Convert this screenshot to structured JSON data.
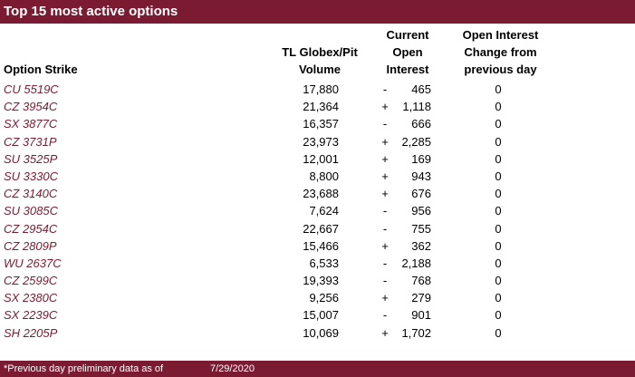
{
  "title": "Top 15 most active options",
  "headers": {
    "strike": "Option Strike",
    "volume": [
      "TL Globex/Pit",
      "Volume"
    ],
    "open_interest": [
      "Current",
      "Open",
      "Interest"
    ],
    "change": [
      "Open Interest",
      "Change from",
      "previous day"
    ]
  },
  "rows": [
    {
      "strike": "CU 5519C",
      "volume": "17,880",
      "sign": "-",
      "oi": "465",
      "change": "0"
    },
    {
      "strike": "CZ 3954C",
      "volume": "21,364",
      "sign": "+",
      "oi": "1,118",
      "change": "0"
    },
    {
      "strike": "SX 3877C",
      "volume": "16,357",
      "sign": "-",
      "oi": "666",
      "change": "0"
    },
    {
      "strike": "CZ 3731P",
      "volume": "23,973",
      "sign": "+",
      "oi": "2,285",
      "change": "0"
    },
    {
      "strike": "SU 3525P",
      "volume": "12,001",
      "sign": "+",
      "oi": "169",
      "change": "0"
    },
    {
      "strike": "SU 3330C",
      "volume": "8,800",
      "sign": "+",
      "oi": "943",
      "change": "0"
    },
    {
      "strike": "CZ 3140C",
      "volume": "23,688",
      "sign": "+",
      "oi": "676",
      "change": "0"
    },
    {
      "strike": "SU 3085C",
      "volume": "7,624",
      "sign": "-",
      "oi": "956",
      "change": "0"
    },
    {
      "strike": "CZ 2954C",
      "volume": "22,667",
      "sign": "-",
      "oi": "755",
      "change": "0"
    },
    {
      "strike": "CZ 2809P",
      "volume": "15,466",
      "sign": "+",
      "oi": "362",
      "change": "0"
    },
    {
      "strike": "WU 2637C",
      "volume": "6,533",
      "sign": "-",
      "oi": "2,188",
      "change": "0"
    },
    {
      "strike": "CZ 2599C",
      "volume": "19,393",
      "sign": "-",
      "oi": "768",
      "change": "0"
    },
    {
      "strike": "SX 2380C",
      "volume": "9,256",
      "sign": "+",
      "oi": "279",
      "change": "0"
    },
    {
      "strike": "SX 2239C",
      "volume": "15,007",
      "sign": "-",
      "oi": "901",
      "change": "0"
    },
    {
      "strike": "SH 2205P",
      "volume": "10,069",
      "sign": "+",
      "oi": "1,702",
      "change": "0"
    }
  ],
  "footer": {
    "note": "*Previous day preliminary data as of",
    "date": "7/29/2020"
  },
  "colors": {
    "accent": "#7b1b31",
    "strike_text": "#7b1b31"
  }
}
